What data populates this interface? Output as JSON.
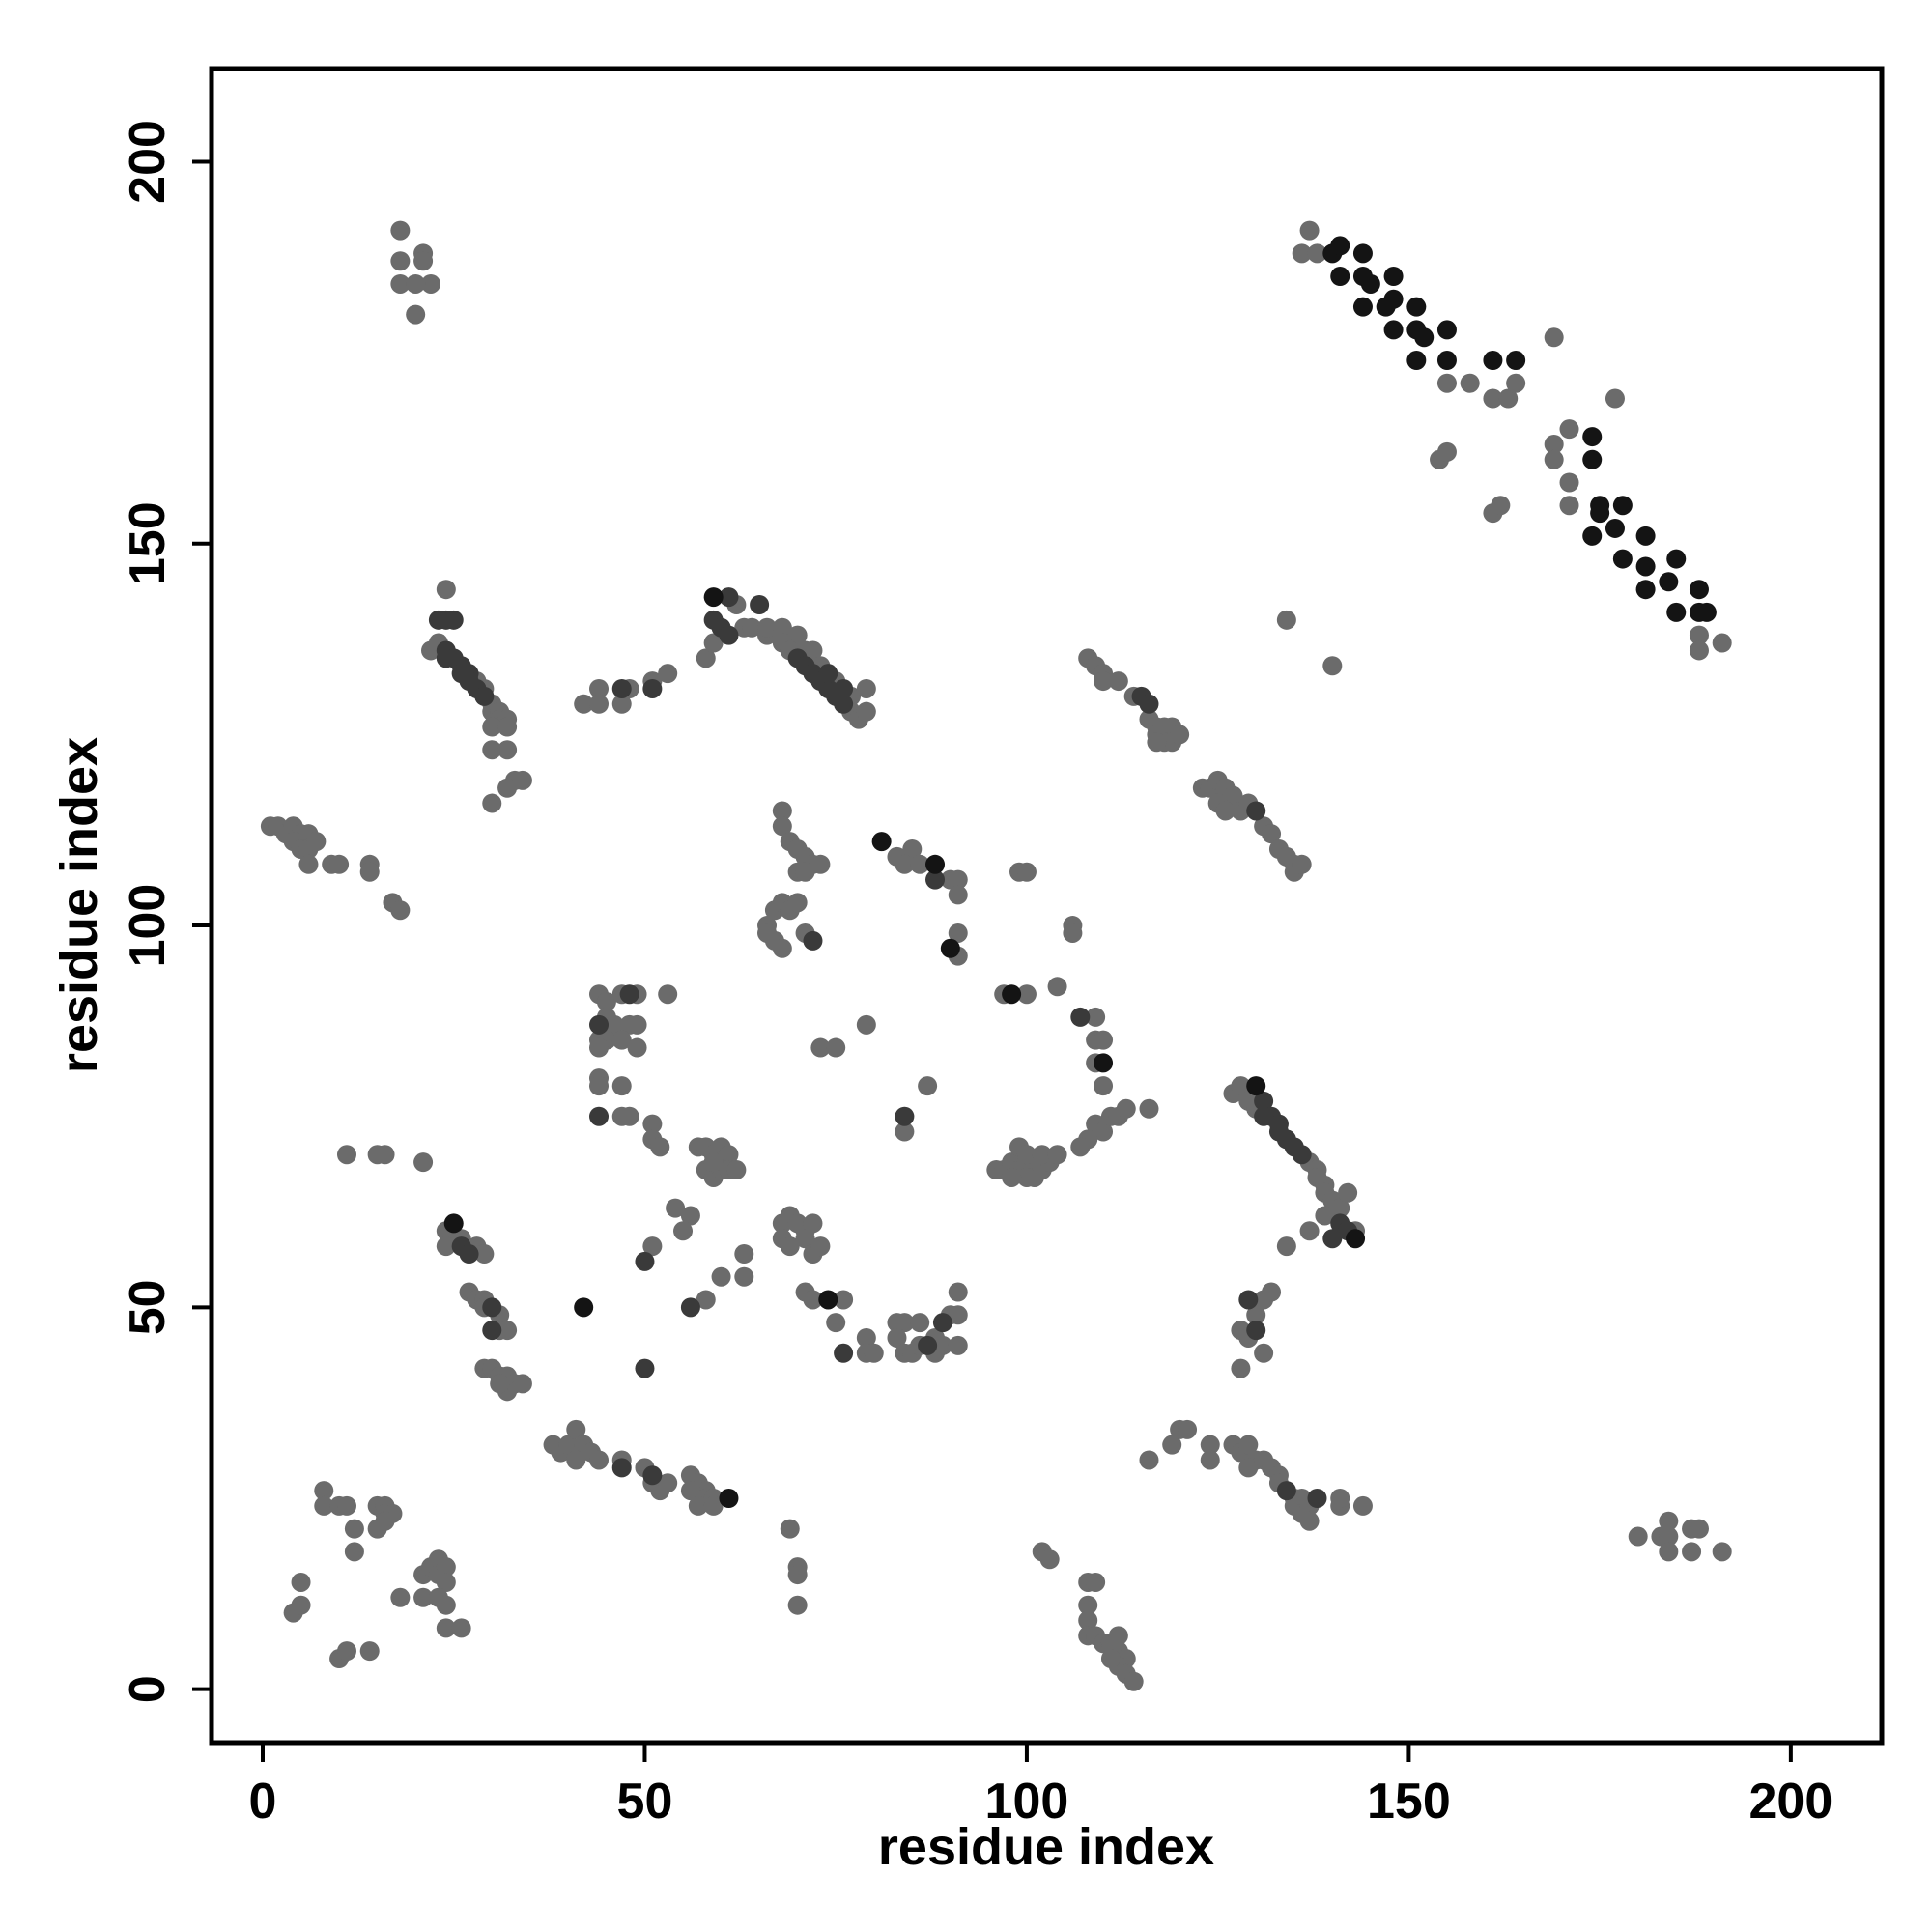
{
  "chart_data": {
    "type": "scatter",
    "xlabel": "residue index",
    "ylabel": "residue index",
    "xlim": [
      -6.7,
      211.9
    ],
    "ylim": [
      -7,
      212.2
    ],
    "xticks": [
      0,
      50,
      100,
      150,
      200
    ],
    "yticks": [
      0,
      50,
      100,
      150,
      200
    ],
    "grid": false,
    "series": [
      {
        "color": "#6b6b6b",
        "x": [
          18,
          18,
          21,
          21,
          18,
          22,
          20,
          20,
          137,
          136,
          138,
          155,
          158,
          161,
          163,
          164,
          169,
          154,
          155,
          161,
          162,
          169,
          171,
          171,
          171,
          169,
          177,
          188,
          188,
          191,
          134,
          140,
          24,
          22,
          23,
          28,
          29,
          30,
          30,
          31,
          31,
          32,
          30,
          32,
          30,
          32,
          33,
          32,
          34,
          30,
          1,
          2,
          3,
          4,
          5,
          6,
          4,
          5,
          6,
          7,
          6,
          9,
          10,
          14,
          14,
          17,
          18,
          62,
          58,
          59,
          63,
          64,
          66,
          66,
          68,
          70,
          71,
          72,
          68,
          69,
          73,
          75,
          77,
          77,
          78,
          79,
          79,
          42,
          44,
          44,
          47,
          48,
          51,
          53,
          108,
          109,
          110,
          110,
          112,
          114,
          116,
          117,
          117,
          118,
          119,
          118,
          119,
          120,
          117,
          123,
          124,
          125,
          126,
          127,
          125,
          126,
          128,
          129,
          131,
          132,
          133,
          134,
          135,
          135,
          136,
          68,
          68,
          69,
          70,
          71,
          72,
          73,
          70,
          71,
          66,
          67,
          68,
          69,
          70,
          66,
          67,
          68,
          71,
          83,
          85,
          84,
          86,
          90,
          91,
          91,
          91,
          91,
          99,
          100,
          106,
          106,
          44,
          45,
          47,
          49,
          45,
          46,
          48,
          49,
          44,
          45,
          47,
          49,
          44,
          44,
          44,
          47,
          47,
          48,
          51,
          51,
          52,
          53,
          97,
          100,
          104,
          109,
          109,
          110,
          109,
          110,
          109,
          110,
          111,
          112,
          113,
          116,
          108,
          107,
          96,
          97,
          98,
          99,
          100,
          101,
          102,
          103,
          100,
          98,
          99,
          100,
          102,
          104,
          73,
          75,
          79,
          84,
          87,
          57,
          58,
          59,
          60,
          61,
          58,
          59,
          60,
          61,
          62,
          59,
          54,
          56,
          55,
          127,
          128,
          129,
          129,
          130,
          137,
          138,
          138,
          139,
          139,
          140,
          141,
          143,
          142,
          134,
          137,
          139,
          24,
          25,
          26,
          28,
          29,
          24,
          27,
          28,
          29,
          29,
          31,
          31,
          32,
          29,
          30,
          31,
          32,
          33,
          32,
          34,
          31,
          68,
          69,
          70,
          71,
          72,
          68,
          69,
          71,
          72,
          73,
          71,
          72,
          76,
          75,
          79,
          79,
          80,
          83,
          84,
          86,
          83,
          84,
          85,
          86,
          88,
          89,
          90,
          91,
          91,
          91,
          88,
          51,
          58,
          60,
          63,
          63,
          38,
          39,
          40,
          41,
          42,
          43,
          44,
          41,
          47,
          50,
          51,
          52,
          53,
          56,
          57,
          58,
          56,
          58,
          59,
          57,
          59,
          116,
          119,
          120,
          121,
          124,
          124,
          127,
          128,
          129,
          130,
          129,
          131,
          132,
          133,
          133,
          135,
          135,
          136,
          136,
          137,
          137,
          141,
          141,
          144,
          128,
          129,
          130,
          131,
          131,
          128,
          132,
          8,
          8,
          10,
          11,
          12,
          12,
          15,
          16,
          16,
          17,
          15,
          16,
          4,
          5,
          5,
          10,
          11,
          14,
          18,
          21,
          21,
          22,
          23,
          23,
          24,
          24,
          23,
          24,
          24,
          26,
          11,
          15,
          16,
          21,
          69,
          70,
          70,
          70,
          102,
          103,
          108,
          109,
          108,
          108,
          108,
          109,
          110,
          111,
          112,
          113,
          112,
          113,
          114,
          112,
          111,
          180,
          183,
          184,
          184,
          184,
          187,
          188,
          187,
          191
        ],
        "y": [
          191,
          187,
          188,
          187,
          184,
          184,
          180,
          184,
          191,
          188,
          188,
          171,
          171,
          169,
          169,
          171,
          177,
          161,
          162,
          154,
          155,
          163,
          165,
          158,
          155,
          161,
          169,
          138,
          136,
          137,
          140,
          134,
          144,
          136,
          137,
          132,
          131,
          129,
          128,
          128,
          127,
          127,
          126,
          126,
          123,
          123,
          119,
          118,
          119,
          116,
          113,
          113,
          112,
          113,
          112,
          112,
          111,
          110,
          110,
          111,
          108,
          108,
          108,
          108,
          107,
          103,
          102,
          142,
          135,
          137,
          139,
          139,
          138,
          139,
          139,
          138,
          136,
          136,
          137,
          136,
          134,
          132,
          130,
          128,
          127,
          128,
          131,
          129,
          131,
          129,
          129,
          131,
          132,
          133,
          135,
          134,
          133,
          132,
          132,
          130,
          127,
          126,
          125,
          126,
          126,
          124,
          124,
          125,
          124,
          118,
          118,
          119,
          118,
          117,
          116,
          115,
          115,
          116,
          113,
          112,
          110,
          109,
          108,
          107,
          108,
          115,
          113,
          111,
          110,
          109,
          108,
          108,
          107,
          107,
          100,
          102,
          103,
          102,
          103,
          99,
          98,
          97,
          99,
          109,
          110,
          108,
          108,
          106,
          106,
          104,
          99,
          96,
          107,
          107,
          100,
          99,
          91,
          90,
          91,
          91,
          88,
          87,
          87,
          87,
          85,
          85,
          85,
          84,
          84,
          80,
          79,
          79,
          75,
          75,
          74,
          72,
          71,
          91,
          91,
          91,
          92,
          88,
          85,
          85,
          82,
          79,
          74,
          73,
          75,
          75,
          76,
          76,
          72,
          71,
          68,
          68,
          69,
          68,
          69,
          67,
          68,
          69,
          67,
          67,
          71,
          70,
          70,
          70,
          84,
          84,
          87,
          73,
          79,
          71,
          71,
          70,
          71,
          70,
          68,
          67,
          68,
          68,
          68,
          69,
          63,
          62,
          60,
          78,
          79,
          78,
          77,
          76,
          69,
          68,
          67,
          66,
          65,
          64,
          63,
          60,
          65,
          58,
          60,
          62,
          60,
          59,
          59,
          58,
          57,
          58,
          52,
          51,
          51,
          50,
          49,
          47,
          47,
          42,
          42,
          41,
          41,
          40,
          39,
          40,
          40,
          61,
          62,
          61,
          60,
          61,
          59,
          58,
          59,
          57,
          58,
          52,
          51,
          51,
          48,
          46,
          44,
          44,
          48,
          48,
          48,
          46,
          44,
          44,
          45,
          46,
          45,
          49,
          49,
          52,
          45,
          44,
          58,
          51,
          54,
          54,
          57,
          32,
          31,
          32,
          34,
          32,
          31,
          30,
          30,
          30,
          29,
          27,
          26,
          27,
          28,
          27,
          26,
          26,
          25,
          25,
          24,
          24,
          30,
          32,
          34,
          34,
          32,
          30,
          32,
          31,
          32,
          30,
          29,
          30,
          29,
          28,
          27,
          25,
          24,
          25,
          23,
          24,
          22,
          24,
          25,
          24,
          47,
          46,
          49,
          51,
          44,
          42,
          52,
          26,
          24,
          24,
          24,
          21,
          18,
          24,
          24,
          23,
          23,
          21,
          22,
          10,
          11,
          14,
          4,
          5,
          5,
          12,
          12,
          15,
          16,
          17,
          15,
          16,
          14,
          12,
          11,
          8,
          8,
          70,
          70,
          70,
          69,
          21,
          16,
          15,
          11,
          18,
          17,
          14,
          14,
          11,
          9,
          7,
          7,
          6,
          6,
          5,
          4,
          3,
          2,
          1,
          7,
          4,
          20,
          20,
          22,
          20,
          18,
          21,
          21,
          18,
          18
        ]
      },
      {
        "color": "#3a3a3a",
        "x": [
          23,
          24,
          25,
          24,
          24,
          25,
          26,
          26,
          27,
          27,
          28,
          29,
          61,
          65,
          59,
          60,
          61,
          70,
          71,
          72,
          73,
          74,
          75,
          76,
          76,
          74,
          47,
          51,
          115,
          116,
          130,
          88,
          44,
          107,
          131,
          132,
          133,
          134,
          135,
          136,
          141,
          142,
          140,
          50,
          56,
          50,
          30,
          30,
          47,
          51,
          76,
          134,
          138,
          129,
          130,
          26,
          27,
          131,
          133,
          87,
          89,
          84,
          44,
          48,
          72
        ],
        "y": [
          140,
          140,
          140,
          136,
          135,
          135,
          134,
          133,
          133,
          132,
          131,
          130,
          143,
          142,
          140,
          139,
          138,
          135,
          134,
          133,
          132,
          131,
          130,
          129,
          131,
          133,
          131,
          131,
          130,
          129,
          115,
          106,
          75,
          88,
          77,
          75,
          74,
          72,
          71,
          70,
          61,
          60,
          59,
          56,
          50,
          42,
          50,
          47,
          29,
          28,
          44,
          26,
          25,
          51,
          47,
          58,
          57,
          75,
          73,
          45,
          48,
          75,
          87,
          91,
          98
        ]
      },
      {
        "color": "#141414",
        "x": [
          140,
          141,
          144,
          141,
          144,
          145,
          144,
          147,
          148,
          148,
          148,
          151,
          151,
          152,
          151,
          155,
          155,
          161,
          164,
          174,
          174,
          175,
          175,
          174,
          178,
          177,
          178,
          181,
          181,
          181,
          185,
          184,
          185,
          188,
          188,
          189,
          59,
          130,
          143,
          110,
          98,
          81,
          88,
          90,
          42,
          25,
          74,
          61
        ],
        "y": [
          188,
          189,
          188,
          185,
          185,
          184,
          181,
          181,
          185,
          182,
          178,
          181,
          178,
          177,
          174,
          178,
          174,
          174,
          174,
          164,
          161,
          155,
          154,
          151,
          155,
          152,
          148,
          151,
          147,
          144,
          148,
          145,
          141,
          144,
          141,
          141,
          143,
          79,
          59,
          82,
          91,
          111,
          108,
          97,
          50,
          61,
          51,
          25
        ]
      }
    ]
  }
}
